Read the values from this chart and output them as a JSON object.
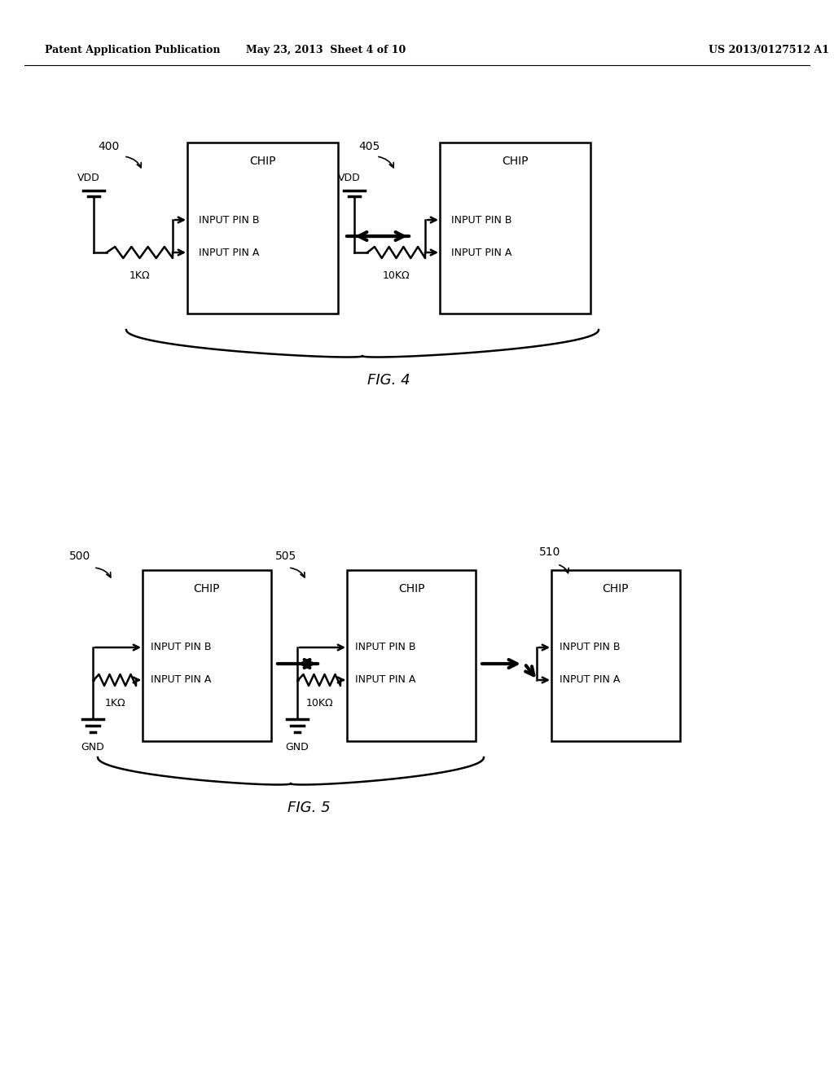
{
  "header_left": "Patent Application Publication",
  "header_mid": "May 23, 2013  Sheet 4 of 10",
  "header_right": "US 2013/0127512 A1",
  "fig4_label": "FIG. 4",
  "fig5_label": "FIG. 5",
  "fig4_label400": "400",
  "fig4_label405": "405",
  "fig5_label500": "500",
  "fig5_label505": "505",
  "fig5_label510": "510",
  "chip_label": "CHIP",
  "input_pin_b": "INPUT PIN B",
  "input_pin_a": "INPUT PIN A",
  "resistor1": "1KΩ",
  "resistor10": "10KΩ",
  "vdd": "VDD",
  "gnd": "GND",
  "bg_color": "#ffffff",
  "fg_color": "#000000"
}
